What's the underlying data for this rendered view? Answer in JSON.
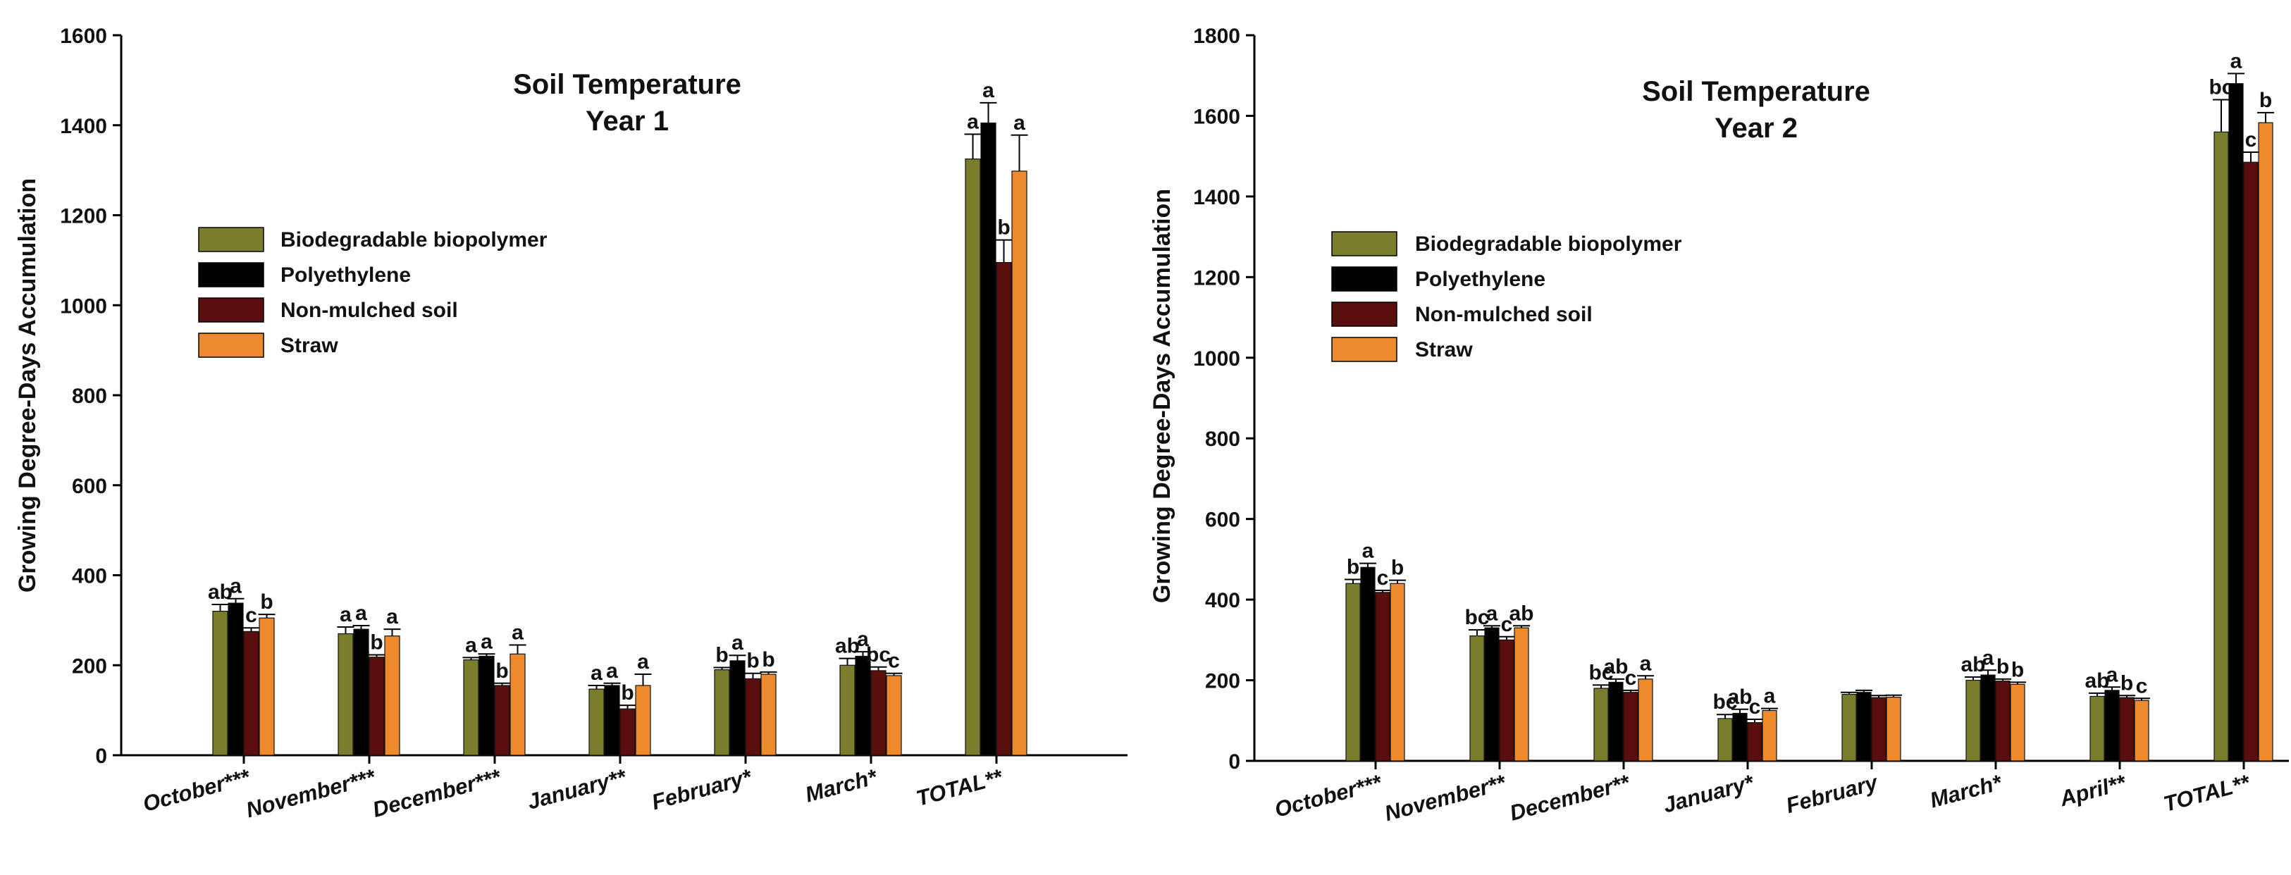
{
  "colors": {
    "Biodegradable biopolymer": "#7a7e2c",
    "Polyethylene": "#000000",
    "Non-mulched soil": "#5a0e0e",
    "Straw": "#ee8a2e"
  },
  "chart_data": [
    {
      "type": "bar",
      "title": "Soil Temperature",
      "subtitle": "Year 1",
      "xlabel": "",
      "ylabel": "Growing Degree-Days Accumulation",
      "ylim": [
        0,
        1600
      ],
      "yticks": [
        0,
        200,
        400,
        600,
        800,
        1000,
        1200,
        1400,
        1600
      ],
      "legend_position": "upper-left",
      "categories": [
        "October***",
        "November***",
        "December***",
        "January**",
        "February*",
        "March*",
        "TOTAL**"
      ],
      "series": [
        {
          "name": "Biodegradable biopolymer",
          "values": [
            320,
            270,
            212,
            147,
            190,
            200,
            1325
          ],
          "errors": [
            15,
            15,
            5,
            8,
            5,
            15,
            55
          ],
          "letters": [
            "ab",
            "a",
            "a",
            "a",
            "b",
            "ab",
            "a"
          ]
        },
        {
          "name": "Polyethylene",
          "values": [
            338,
            280,
            220,
            155,
            210,
            220,
            1405
          ],
          "errors": [
            10,
            8,
            5,
            5,
            12,
            10,
            45
          ],
          "letters": [
            "a",
            "a",
            "a",
            "a",
            "a",
            "a",
            "a"
          ]
        },
        {
          "name": "Non-mulched soil",
          "values": [
            275,
            218,
            155,
            103,
            170,
            188,
            1095
          ],
          "errors": [
            8,
            5,
            5,
            8,
            12,
            8,
            50
          ],
          "letters": [
            "c",
            "b",
            "b",
            "b",
            "b",
            "bc",
            "b"
          ]
        },
        {
          "name": "Straw",
          "values": [
            305,
            265,
            225,
            155,
            180,
            177,
            1298
          ],
          "errors": [
            8,
            15,
            20,
            25,
            5,
            5,
            80
          ],
          "letters": [
            "b",
            "a",
            "a",
            "a",
            "b",
            "c",
            "a"
          ]
        }
      ]
    },
    {
      "type": "bar",
      "title": "Soil Temperature",
      "subtitle": "Year 2",
      "xlabel": "",
      "ylabel": "Growing Degree-Days Accumulation",
      "ylim": [
        0,
        1800
      ],
      "yticks": [
        0,
        200,
        400,
        600,
        800,
        1000,
        1200,
        1400,
        1600,
        1800
      ],
      "legend_position": "upper-left",
      "categories": [
        "October***",
        "November**",
        "December**",
        "January*",
        "February",
        "March*",
        "April**",
        "TOTAL**"
      ],
      "series": [
        {
          "name": "Biodegradable biopolymer",
          "values": [
            440,
            310,
            180,
            105,
            165,
            200,
            160,
            1560
          ],
          "errors": [
            10,
            15,
            8,
            10,
            5,
            8,
            8,
            80
          ],
          "letters": [
            "b",
            "bc",
            "bc",
            "bc",
            "",
            "ab",
            "ab",
            "bc"
          ]
        },
        {
          "name": "Polyethylene",
          "values": [
            480,
            330,
            195,
            118,
            170,
            213,
            175,
            1680
          ],
          "errors": [
            10,
            5,
            8,
            10,
            5,
            12,
            8,
            25
          ],
          "letters": [
            "a",
            "a",
            "ab",
            "ab",
            "",
            "a",
            "a",
            "a"
          ]
        },
        {
          "name": "Non-mulched soil",
          "values": [
            418,
            300,
            170,
            95,
            157,
            198,
            157,
            1485
          ],
          "errors": [
            5,
            8,
            5,
            8,
            5,
            5,
            5,
            25
          ],
          "letters": [
            "c",
            "c",
            "c",
            "c",
            "",
            "b",
            "b",
            "c"
          ]
        },
        {
          "name": "Straw",
          "values": [
            440,
            330,
            203,
            125,
            158,
            190,
            150,
            1583
          ],
          "errors": [
            8,
            5,
            8,
            5,
            5,
            5,
            5,
            25
          ],
          "letters": [
            "b",
            "ab",
            "a",
            "a",
            "",
            "b",
            "c",
            "b"
          ]
        }
      ]
    }
  ]
}
